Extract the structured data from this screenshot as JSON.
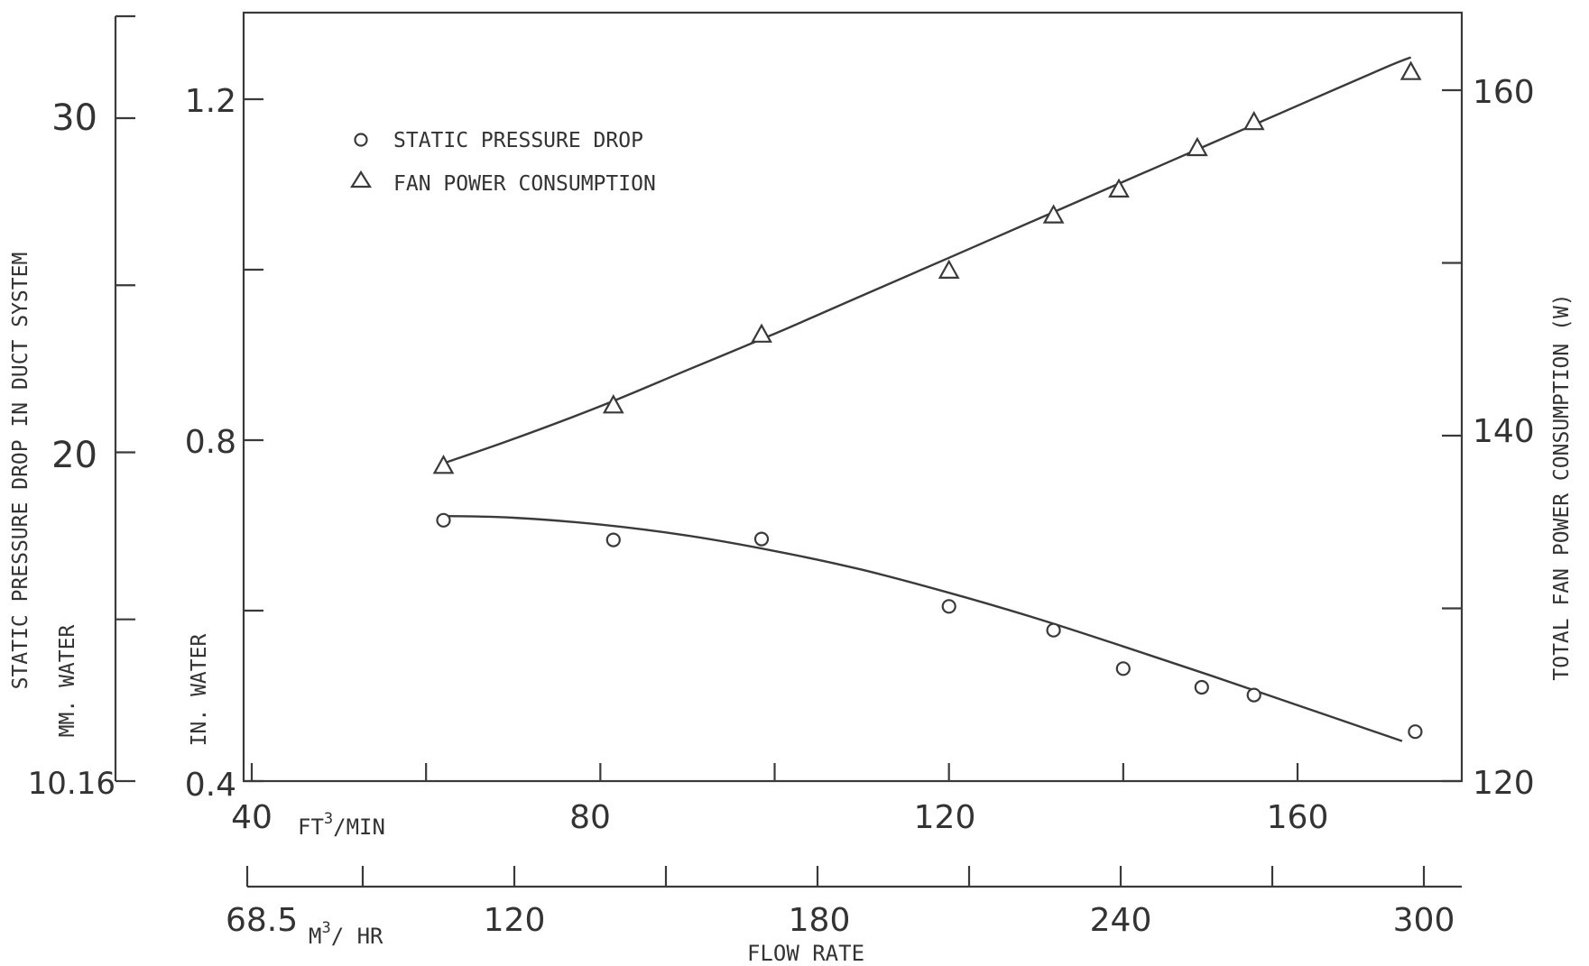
{
  "chart_data": {
    "type": "scatter",
    "xlabel": "FLOW RATE",
    "x_unit_primary": "FT",
    "x_unit_primary_sup": "3",
    "x_unit_primary_suffix": "/MIN",
    "x_unit_secondary": "M",
    "x_unit_secondary_sup": "3",
    "x_unit_secondary_suffix": "/ HR",
    "x_range": [
      40,
      175
    ],
    "x_ticks": [
      40,
      60,
      80,
      100,
      120,
      140,
      160
    ],
    "x_tick_labels": [
      "40",
      "80",
      "120",
      "160"
    ],
    "x_secondary_ticks": [
      68.5,
      90,
      120,
      150,
      180,
      210,
      240,
      270,
      300
    ],
    "x_secondary_tick_labels": [
      "68.5",
      "120",
      "180",
      "240",
      "300"
    ],
    "y_left_outer": {
      "label": "STATIC PRESSURE DROP IN DUCT SYSTEM",
      "unit": "MM. WATER",
      "range": [
        10.16,
        30
      ],
      "tick_labels": [
        "10.16",
        "20",
        "30"
      ]
    },
    "y_left_inner": {
      "unit": "IN. WATER",
      "range": [
        0.4,
        1.28
      ],
      "tick_labels": [
        "0.4",
        "0.8",
        "1.2"
      ]
    },
    "y_right": {
      "label": "TOTAL FAN POWER CONSUMPTION (W)",
      "range": [
        120,
        164
      ],
      "tick_labels": [
        "120",
        "140",
        "160"
      ]
    },
    "legend": {
      "placement": "top-left",
      "entries": [
        "STATIC PRESSURE DROP",
        "FAN POWER CONSUMPTION"
      ]
    },
    "series": [
      {
        "name": "STATIC PRESSURE DROP",
        "axis": "inner-left",
        "marker": "circle",
        "x": [
          62,
          81.5,
          98.5,
          120,
          132,
          140,
          149,
          155,
          173.5
        ],
        "y": [
          0.706,
          0.683,
          0.684,
          0.605,
          0.577,
          0.532,
          0.51,
          0.501,
          0.458
        ]
      },
      {
        "name": "FAN POWER CONSUMPTION",
        "axis": "right",
        "marker": "triangle",
        "x": [
          62,
          81.5,
          98.5,
          120,
          132,
          139.5,
          148.5,
          155,
          173
        ],
        "y": [
          138.2,
          141.7,
          145.8,
          149.5,
          152.7,
          154.2,
          156.6,
          158.1,
          161.0
        ]
      }
    ],
    "fit_curves": [
      {
        "name": "STATIC PRESSURE DROP",
        "axis": "inner-left",
        "x": [
          62,
          70,
          80,
          90,
          100,
          110,
          120,
          130,
          140,
          150,
          160,
          170,
          172
        ],
        "y": [
          0.711,
          0.709,
          0.701,
          0.688,
          0.67,
          0.648,
          0.621,
          0.591,
          0.558,
          0.524,
          0.489,
          0.454,
          0.447
        ]
      },
      {
        "name": "FAN POWER CONSUMPTION",
        "axis": "right",
        "x": [
          62,
          70,
          80,
          90,
          100,
          110,
          120,
          130,
          140,
          150,
          160,
          170,
          173
        ],
        "y": [
          138.4,
          139.8,
          141.7,
          143.8,
          145.9,
          148.1,
          150.3,
          152.5,
          154.7,
          156.9,
          159.1,
          161.3,
          161.9
        ]
      }
    ]
  }
}
